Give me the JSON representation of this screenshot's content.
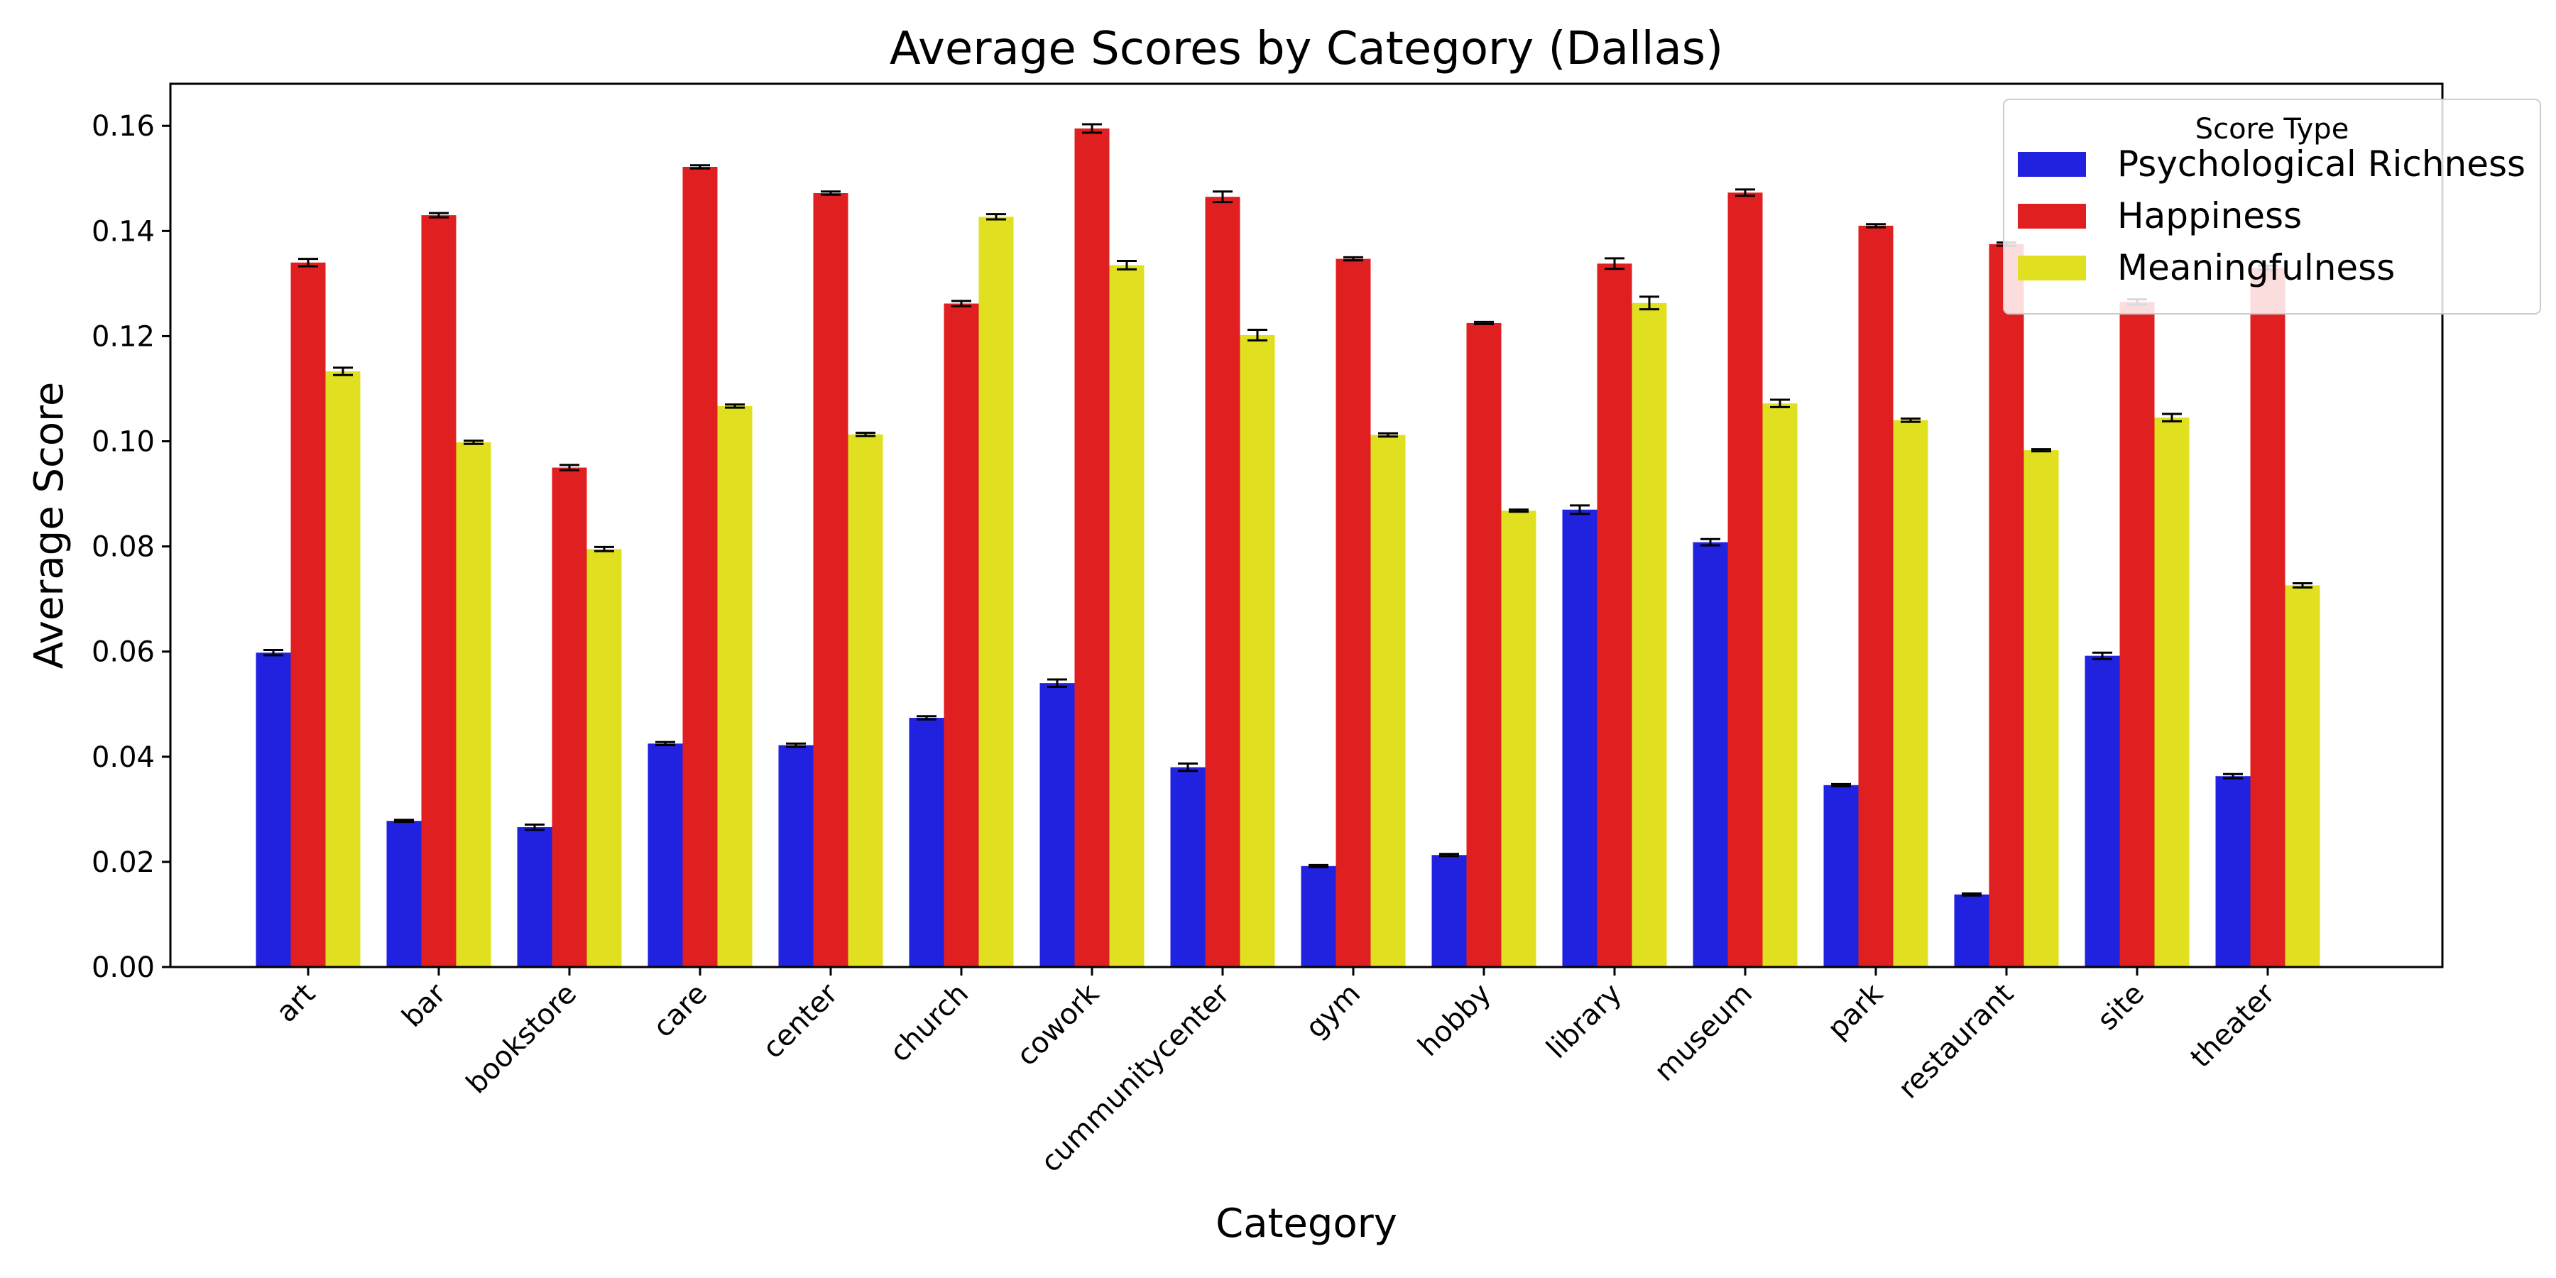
{
  "chart_data": {
    "type": "bar",
    "title": "Average Scores by Category (Dallas)",
    "xlabel": "Category",
    "ylabel": "Average Score",
    "ylim": [
      0,
      0.168
    ],
    "yticks": [
      "0.00",
      "0.02",
      "0.04",
      "0.06",
      "0.08",
      "0.10",
      "0.12",
      "0.14",
      "0.16"
    ],
    "ytick_values": [
      0,
      0.02,
      0.04,
      0.06,
      0.08,
      0.1,
      0.12,
      0.14,
      0.16
    ],
    "grid": false,
    "legend_position": "top-right",
    "categories": [
      "art",
      "bar",
      "bookstore",
      "care",
      "center",
      "church",
      "cowork",
      "cummunitycenter",
      "gym",
      "hobby",
      "library",
      "museum",
      "park",
      "restaurant",
      "site",
      "theater"
    ],
    "series": [
      {
        "name": "Psychological Richness",
        "color": "#2121e0",
        "values": [
          0.0598,
          0.0278,
          0.0266,
          0.0425,
          0.0422,
          0.0474,
          0.054,
          0.038,
          0.0192,
          0.0213,
          0.087,
          0.0808,
          0.0346,
          0.0138,
          0.0592,
          0.0363
        ],
        "errors": [
          0.0005,
          0.0002,
          0.0005,
          0.0003,
          0.0003,
          0.0003,
          0.0007,
          0.0007,
          0.0002,
          0.0002,
          0.0008,
          0.0006,
          0.0002,
          0.0002,
          0.0006,
          0.0004
        ]
      },
      {
        "name": "Happiness",
        "color": "#e02020",
        "values": [
          0.134,
          0.143,
          0.095,
          0.1522,
          0.1472,
          0.1262,
          0.1595,
          0.1465,
          0.1347,
          0.1225,
          0.1338,
          0.1473,
          0.141,
          0.1375,
          0.1265,
          0.133
        ],
        "errors": [
          0.0007,
          0.0004,
          0.0005,
          0.0003,
          0.0003,
          0.0005,
          0.0008,
          0.001,
          0.0003,
          0.0002,
          0.001,
          0.0006,
          0.0003,
          0.0003,
          0.0005,
          0.0004
        ]
      },
      {
        "name": "Meaningfulness",
        "color": "#e0e020",
        "values": [
          0.1133,
          0.0998,
          0.0795,
          0.1067,
          0.1013,
          0.1427,
          0.1335,
          0.1202,
          0.1012,
          0.0868,
          0.1263,
          0.1072,
          0.104,
          0.0983,
          0.1045,
          0.0726
        ],
        "errors": [
          0.0007,
          0.0003,
          0.0004,
          0.0003,
          0.0003,
          0.0005,
          0.0008,
          0.001,
          0.0003,
          0.0002,
          0.0012,
          0.0007,
          0.0003,
          0.0002,
          0.0007,
          0.0004
        ]
      }
    ],
    "legend_title": "Score Type"
  }
}
